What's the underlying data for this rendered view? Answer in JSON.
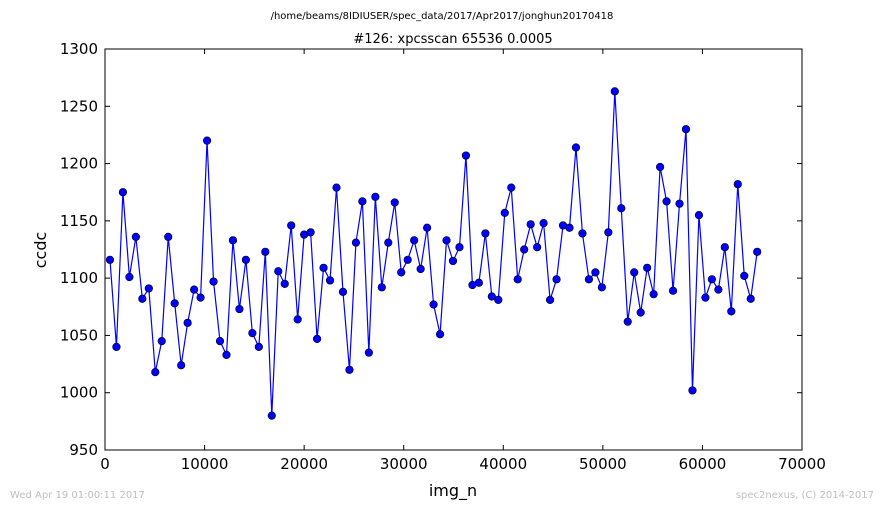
{
  "colors": {
    "series": "#0000ff",
    "footer": "#bfbfbf"
  },
  "footer": {
    "timestamp": "Wed Apr 19 01:00:11 2017",
    "credit": "spec2nexus, (C) 2014-2017"
  },
  "chart_data": {
    "type": "line",
    "suptitle": "/home/beams/8IDIUSER/spec_data/2017/Apr2017/jonghun20170418",
    "title": "#126: xpcsscan 65536 0.0005",
    "xlabel": "img_n",
    "ylabel": "ccdc",
    "xlim": [
      0,
      70000
    ],
    "ylim": [
      950,
      1300
    ],
    "xticks": [
      "0",
      "10000",
      "20000",
      "30000",
      "40000",
      "50000",
      "60000",
      "70000"
    ],
    "yticks": [
      "950",
      "1000",
      "1050",
      "1100",
      "1150",
      "1200",
      "1250",
      "1300"
    ],
    "grid": false,
    "markers": "circle",
    "series": [
      {
        "x": [
          500,
          1150,
          1800,
          2450,
          3100,
          3750,
          4400,
          5050,
          5700,
          6350,
          7000,
          7650,
          8300,
          8950,
          9600,
          10250,
          10900,
          11550,
          12200,
          12850,
          13500,
          14150,
          14800,
          15450,
          16100,
          16750,
          17400,
          18050,
          18700,
          19350,
          20000,
          20650,
          21300,
          21950,
          22600,
          23250,
          23900,
          24550,
          25200,
          25850,
          26500,
          27150,
          27800,
          28450,
          29100,
          29750,
          30400,
          31050,
          31700,
          32350,
          33000,
          33650,
          34300,
          34950,
          35600,
          36250,
          36900,
          37550,
          38200,
          38850,
          39500,
          40150,
          40800,
          41450,
          42100,
          42750,
          43400,
          44050,
          44700,
          45350,
          46000,
          46650,
          47300,
          47950,
          48600,
          49250,
          49900,
          50550,
          51200,
          51850,
          52500,
          53150,
          53800,
          54450,
          55100,
          55750,
          56400,
          57050,
          57700,
          58350,
          59000,
          59650,
          60300,
          60950,
          61600,
          62250,
          62900,
          63550,
          64200,
          64850,
          65500
        ],
        "values": [
          1116,
          1040,
          1175,
          1101,
          1136,
          1082,
          1091,
          1018,
          1045,
          1136,
          1078,
          1024,
          1061,
          1090,
          1083,
          1220,
          1097,
          1045,
          1033,
          1133,
          1073,
          1116,
          1052,
          1040,
          1123,
          980,
          1106,
          1095,
          1146,
          1064,
          1138,
          1140,
          1047,
          1109,
          1098,
          1179,
          1088,
          1020,
          1131,
          1167,
          1035,
          1171,
          1092,
          1131,
          1166,
          1105,
          1116,
          1133,
          1108,
          1144,
          1077,
          1051,
          1133,
          1115,
          1127,
          1207,
          1094,
          1096,
          1139,
          1084,
          1081,
          1157,
          1179,
          1099,
          1125,
          1147,
          1127,
          1148,
          1081,
          1099,
          1146,
          1144,
          1214,
          1139,
          1099,
          1105,
          1092,
          1140,
          1263,
          1161,
          1062,
          1105,
          1070,
          1109,
          1086,
          1197,
          1167,
          1089,
          1165,
          1230,
          1002,
          1155,
          1083,
          1099,
          1090,
          1127,
          1071,
          1182,
          1102,
          1082,
          1123
        ]
      }
    ]
  }
}
